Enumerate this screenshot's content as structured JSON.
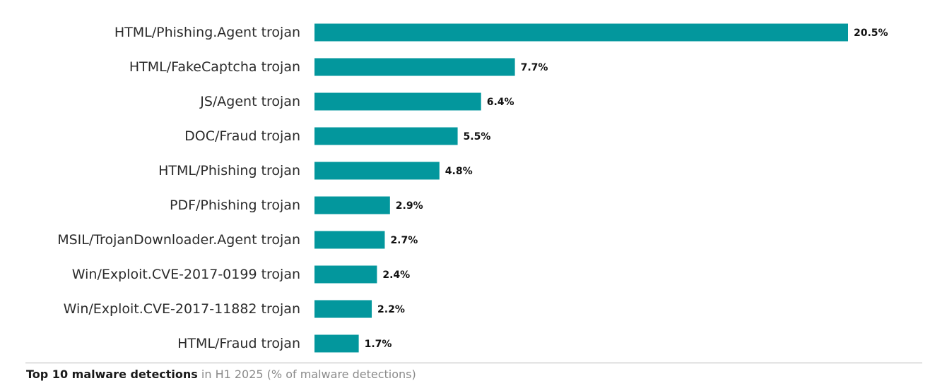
{
  "chart_data": {
    "type": "bar",
    "orientation": "horizontal",
    "categories": [
      "HTML/Phishing.Agent trojan",
      "HTML/FakeCaptcha trojan",
      "JS/Agent trojan",
      "DOC/Fraud trojan",
      "HTML/Phishing trojan",
      "PDF/Phishing trojan",
      "MSIL/TrojanDownloader.Agent trojan",
      "Win/Exploit.CVE-2017-0199 trojan",
      "Win/Exploit.CVE-2017-11882 trojan",
      "HTML/Fraud trojan"
    ],
    "values": [
      20.5,
      7.7,
      6.4,
      5.5,
      4.8,
      2.9,
      2.7,
      2.4,
      2.2,
      1.7
    ],
    "value_labels": [
      "20.5%",
      "7.7%",
      "6.4%",
      "5.5%",
      "4.8%",
      "2.9%",
      "2.7%",
      "2.4%",
      "2.2%",
      "1.7%"
    ],
    "bar_color": "#03979d",
    "xlim": [
      0,
      20.5
    ],
    "grid": false,
    "legend": "none"
  },
  "caption": {
    "bold": "Top 10 malware detections",
    "rest": " in H1 2025 (% of malware detections)"
  },
  "colors": {
    "bar": "#03979d",
    "label_text": "#2b2b2b",
    "value_text": "#111111",
    "caption_muted": "#8a8a8a",
    "rule": "#b5b5b5"
  }
}
